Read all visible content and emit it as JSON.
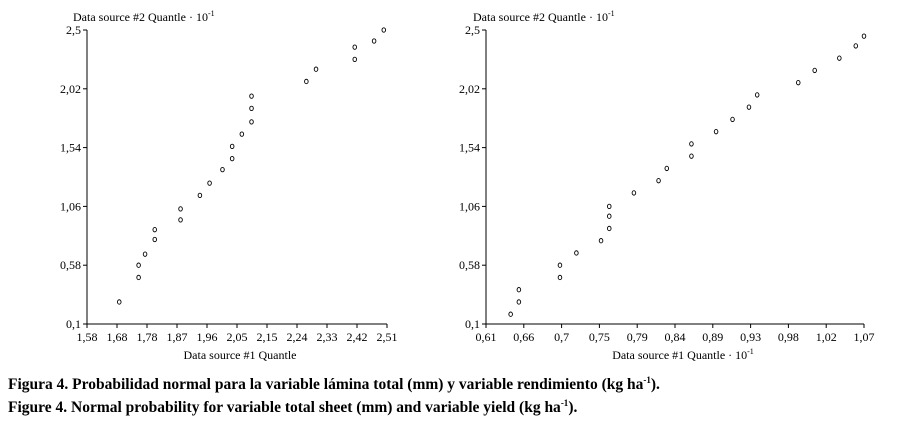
{
  "chart_data": [
    {
      "type": "scatter",
      "title": "",
      "xlabel": "Data source #1 Quantle",
      "xlabel_suffix": "",
      "ylabel": "Data source #2 Quantle · 10",
      "ylabel_sup": "-1",
      "xlim": [
        1.58,
        2.51
      ],
      "ylim": [
        0.1,
        2.5
      ],
      "xticks": [
        "1,58",
        "1,68",
        "1,78",
        "1,87",
        "1,96",
        "2,05",
        "2,15",
        "2,24",
        "2,33",
        "2,42",
        "2,51"
      ],
      "yticks": [
        "0,1",
        "0,58",
        "1,06",
        "1,54",
        "2,02",
        "2,5"
      ],
      "points": [
        [
          1.68,
          0.28
        ],
        [
          1.74,
          0.48
        ],
        [
          1.74,
          0.58
        ],
        [
          1.76,
          0.67
        ],
        [
          1.79,
          0.79
        ],
        [
          1.79,
          0.87
        ],
        [
          1.87,
          0.95
        ],
        [
          1.87,
          1.04
        ],
        [
          1.93,
          1.15
        ],
        [
          1.96,
          1.25
        ],
        [
          2.0,
          1.36
        ],
        [
          2.03,
          1.45
        ],
        [
          2.03,
          1.55
        ],
        [
          2.06,
          1.65
        ],
        [
          2.09,
          1.75
        ],
        [
          2.09,
          1.86
        ],
        [
          2.09,
          1.96
        ],
        [
          2.26,
          2.08
        ],
        [
          2.29,
          2.18
        ],
        [
          2.41,
          2.26
        ],
        [
          2.41,
          2.36
        ],
        [
          2.47,
          2.41
        ],
        [
          2.5,
          2.5
        ]
      ]
    },
    {
      "type": "scatter",
      "title": "",
      "xlabel": "Data source #1 Quantle · 10",
      "xlabel_sup": "-1",
      "ylabel": "Data source #2 Quantle · 10",
      "ylabel_sup": "-1",
      "xlim": [
        0.61,
        1.07
      ],
      "ylim": [
        0.1,
        2.5
      ],
      "xticks": [
        "0,61",
        "0,66",
        "0,7",
        "0,75",
        "0,79",
        "0,84",
        "0,89",
        "0,93",
        "0,98",
        "1,02",
        "1,07"
      ],
      "yticks": [
        "0,1",
        "0,58",
        "1,06",
        "1,54",
        "2,02",
        "2,5"
      ],
      "points": [
        [
          0.64,
          0.18
        ],
        [
          0.65,
          0.28
        ],
        [
          0.65,
          0.38
        ],
        [
          0.7,
          0.48
        ],
        [
          0.7,
          0.58
        ],
        [
          0.72,
          0.68
        ],
        [
          0.75,
          0.78
        ],
        [
          0.76,
          0.88
        ],
        [
          0.76,
          0.98
        ],
        [
          0.76,
          1.06
        ],
        [
          0.79,
          1.17
        ],
        [
          0.82,
          1.27
        ],
        [
          0.83,
          1.37
        ],
        [
          0.86,
          1.47
        ],
        [
          0.86,
          1.57
        ],
        [
          0.89,
          1.67
        ],
        [
          0.91,
          1.77
        ],
        [
          0.93,
          1.87
        ],
        [
          0.94,
          1.97
        ],
        [
          0.99,
          2.07
        ],
        [
          1.01,
          2.17
        ],
        [
          1.04,
          2.27
        ],
        [
          1.06,
          2.37
        ],
        [
          1.07,
          2.45
        ]
      ]
    }
  ],
  "captions": {
    "line1_main": "Figura 4. Probabilidad normal para la variable lámina total (mm) y variable rendimiento (kg ha",
    "line1_sup": "-1",
    "line1_end": ").",
    "line2_main": "Figure 4. Normal probability for variable total sheet (mm) and variable yield (kg ha",
    "line2_sup": "-1",
    "line2_end": ")."
  }
}
